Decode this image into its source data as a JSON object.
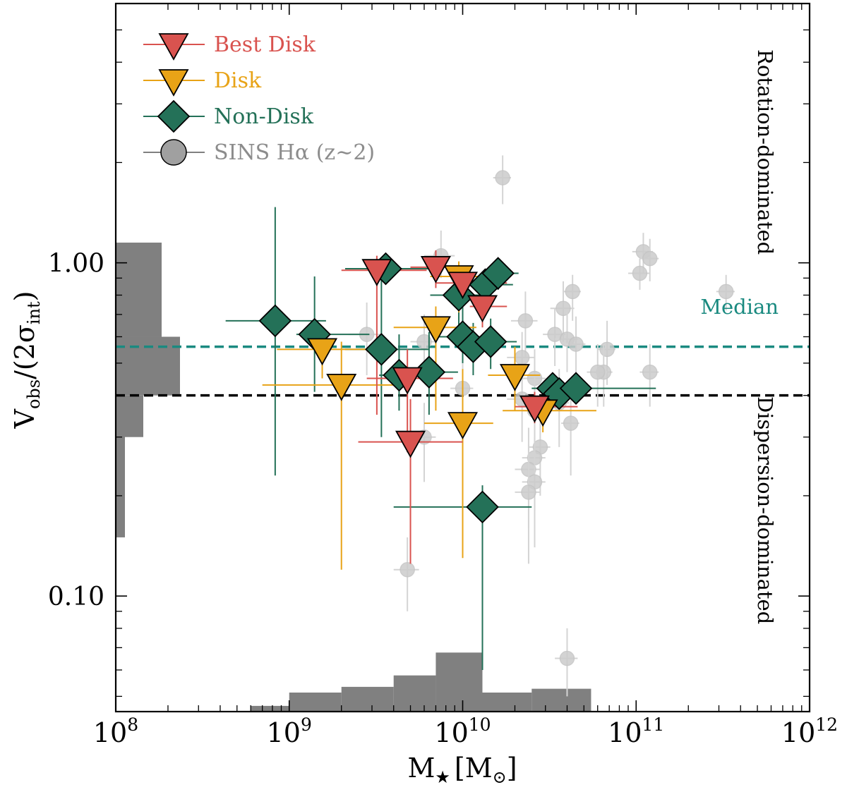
{
  "chart_data": {
    "type": "scatter",
    "title": "",
    "xlabel": {
      "base": "M",
      "sub": "★",
      "bracket": "[M",
      "bracket_sub": "⊙",
      "close": "]"
    },
    "ylabel": {
      "num": "V",
      "num_sub": "obs",
      "den": "/(2σ",
      "den_sub": "int",
      "close": ")"
    },
    "x_scale": "log",
    "y_scale": "log",
    "xlim": [
      100000000.0,
      1000000000000.0
    ],
    "ylim": [
      0.045,
      6.0
    ],
    "x_ticks": [
      {
        "base": "10",
        "exp": "8",
        "value": 100000000.0
      },
      {
        "base": "10",
        "exp": "9",
        "value": 1000000000.0
      },
      {
        "base": "10",
        "exp": "10",
        "value": 10000000000.0
      },
      {
        "base": "10",
        "exp": "11",
        "value": 100000000000.0
      },
      {
        "base": "10",
        "exp": "12",
        "value": 1000000000000.0
      }
    ],
    "y_ticks": [
      {
        "label": "0.10",
        "value": 0.1
      },
      {
        "label": "1.00",
        "value": 1.0
      }
    ],
    "annotations": {
      "rotation": "Rotation-dominated",
      "dispersion": "Dispersion-dominated",
      "median": "Median"
    },
    "legend": {
      "placement": "top-left",
      "entries": [
        {
          "label": "Best Disk",
          "marker": "triangle-down",
          "color": "#d9534f"
        },
        {
          "label": "Disk",
          "marker": "triangle-down",
          "color": "#e8a317"
        },
        {
          "label": "Non-Disk",
          "marker": "diamond",
          "color": "#247158"
        },
        {
          "label": "SINS Hα (z∼2)",
          "marker": "circle",
          "color": "#808080"
        }
      ]
    },
    "hlines": [
      {
        "name": "median",
        "y": 0.56,
        "color": "#1a8a80",
        "style": "dashed"
      },
      {
        "name": "threshold",
        "y": 0.4,
        "color": "#000000",
        "style": "dashed"
      }
    ],
    "hist_x": {
      "color": "#808080",
      "bins": [
        {
          "x0": 600000000.0,
          "x1": 1000000000.0,
          "h": 0.3
        },
        {
          "x0": 1000000000.0,
          "x1": 2000000000.0,
          "h": 1.0
        },
        {
          "x0": 2000000000.0,
          "x1": 4000000000.0,
          "h": 1.3
        },
        {
          "x0": 4000000000.0,
          "x1": 7000000000.0,
          "h": 1.9
        },
        {
          "x0": 7000000000.0,
          "x1": 13000000000.0,
          "h": 3.1
        },
        {
          "x0": 13000000000.0,
          "x1": 25000000000.0,
          "h": 1.0
        },
        {
          "x0": 25000000000.0,
          "x1": 55000000000.0,
          "h": 1.2
        }
      ]
    },
    "hist_y": {
      "color": "#808080",
      "bins": [
        {
          "y0": 0.15,
          "y1": 0.4,
          "w": 1
        },
        {
          "y0": 0.3,
          "y1": 0.4,
          "w": 3
        },
        {
          "y0": 0.4,
          "y1": 0.6,
          "w": 7
        },
        {
          "y0": 0.6,
          "y1": 1.15,
          "w": 5
        }
      ]
    },
    "series": [
      {
        "name": "SINS Hα (z∼2)",
        "marker": "circle",
        "color": "#cfcfcf",
        "points": [
          {
            "x": 17000000000.0,
            "y": 1.8,
            "xerr": [
              2000000000.0,
              2000000000.0
            ],
            "yerr": [
              0.3,
              0.3
            ]
          },
          {
            "x": 7500000000.0,
            "y": 1.05,
            "xerr": [
              1500000000.0,
              1500000000.0
            ],
            "yerr": [
              0.15,
              0.2
            ]
          },
          {
            "x": 110000000000.0,
            "y": 1.08,
            "xerr": [
              15000000000.0,
              15000000000.0
            ],
            "yerr": [
              0.15,
              0.15
            ]
          },
          {
            "x": 120000000000.0,
            "y": 1.03,
            "xerr": [
              15000000000.0,
              15000000000.0
            ],
            "yerr": [
              0.15,
              0.15
            ]
          },
          {
            "x": 105000000000.0,
            "y": 0.93,
            "xerr": [
              15000000000.0,
              15000000000.0
            ],
            "yerr": [
              0.1,
              0.1
            ]
          },
          {
            "x": 330000000000.0,
            "y": 0.82,
            "xerr": [
              40000000000.0,
              40000000000.0
            ],
            "yerr": [
              0.1,
              0.1
            ]
          },
          {
            "x": 43000000000.0,
            "y": 0.82,
            "xerr": [
              5000000000.0,
              5000000000.0
            ],
            "yerr": [
              0.15,
              0.1
            ]
          },
          {
            "x": 38000000000.0,
            "y": 0.73,
            "xerr": [
              6000000000.0,
              6000000000.0
            ],
            "yerr": [
              0.15,
              0.15
            ]
          },
          {
            "x": 23000000000.0,
            "y": 0.67,
            "xerr": [
              4000000000.0,
              4000000000.0
            ],
            "yerr": [
              0.15,
              0.15
            ]
          },
          {
            "x": 2800000000.0,
            "y": 0.61,
            "xerr": [
              600000000.0,
              600000000.0
            ],
            "yerr": [
              0.15,
              0.15
            ]
          },
          {
            "x": 34000000000.0,
            "y": 0.61,
            "xerr": [
              5000000000.0,
              5000000000.0
            ],
            "yerr": [
              0.12,
              0.12
            ]
          },
          {
            "x": 40000000000.0,
            "y": 0.59,
            "xerr": [
              6000000000.0,
              6000000000.0
            ],
            "yerr": [
              0.12,
              0.12
            ]
          },
          {
            "x": 6000000000.0,
            "y": 0.58,
            "xerr": [
              1000000000.0,
              1000000000.0
            ],
            "yerr": [
              0.12,
              0.12
            ]
          },
          {
            "x": 45000000000.0,
            "y": 0.57,
            "xerr": [
              6000000000.0,
              6000000000.0
            ],
            "yerr": [
              0.12,
              0.12
            ]
          },
          {
            "x": 68000000000.0,
            "y": 0.55,
            "xerr": [
              8000000000.0,
              8000000000.0
            ],
            "yerr": [
              0.12,
              0.12
            ]
          },
          {
            "x": 22000000000.0,
            "y": 0.52,
            "xerr": [
              4000000000.0,
              4000000000.0
            ],
            "yerr": [
              0.1,
              0.1
            ]
          },
          {
            "x": 65000000000.0,
            "y": 0.47,
            "xerr": [
              8000000000.0,
              8000000000.0
            ],
            "yerr": [
              0.1,
              0.1
            ]
          },
          {
            "x": 60000000000.0,
            "y": 0.47,
            "xerr": [
              8000000000.0,
              8000000000.0
            ],
            "yerr": [
              0.1,
              0.1
            ]
          },
          {
            "x": 120000000000.0,
            "y": 0.47,
            "xerr": [
              15000000000.0,
              15000000000.0
            ],
            "yerr": [
              0.1,
              0.1
            ]
          },
          {
            "x": 26000000000.0,
            "y": 0.45,
            "xerr": [
              4000000000.0,
              4000000000.0
            ],
            "yerr": [
              0.1,
              0.1
            ]
          },
          {
            "x": 10000000000.0,
            "y": 0.42,
            "xerr": [
              1500000000.0,
              1500000000.0
            ],
            "yerr": [
              0.1,
              0.1
            ]
          },
          {
            "x": 22000000000.0,
            "y": 0.39,
            "xerr": [
              4000000000.0,
              4000000000.0
            ],
            "yerr": [
              0.1,
              0.1
            ]
          },
          {
            "x": 36000000000.0,
            "y": 0.38,
            "xerr": [
              5000000000.0,
              5000000000.0
            ],
            "yerr": [
              0.1,
              0.1
            ]
          },
          {
            "x": 26000000000.0,
            "y": 0.36,
            "xerr": [
              4000000000.0,
              4000000000.0
            ],
            "yerr": [
              0.1,
              0.1
            ]
          },
          {
            "x": 42000000000.0,
            "y": 0.33,
            "xerr": [
              5000000000.0,
              5000000000.0
            ],
            "yerr": [
              0.1,
              0.1
            ]
          },
          {
            "x": 6000000000.0,
            "y": 0.3,
            "xerr": [
              1000000000.0,
              1000000000.0
            ],
            "yerr": [
              0.08,
              0.08
            ]
          },
          {
            "x": 28000000000.0,
            "y": 0.28,
            "xerr": [
              4000000000.0,
              4000000000.0
            ],
            "yerr": [
              0.08,
              0.08
            ]
          },
          {
            "x": 26000000000.0,
            "y": 0.26,
            "xerr": [
              4000000000.0,
              4000000000.0
            ],
            "yerr": [
              0.08,
              0.08
            ]
          },
          {
            "x": 24000000000.0,
            "y": 0.24,
            "xerr": [
              4000000000.0,
              4000000000.0
            ],
            "yerr": [
              0.08,
              0.08
            ]
          },
          {
            "x": 26000000000.0,
            "y": 0.22,
            "xerr": [
              4000000000.0,
              4000000000.0
            ],
            "yerr": [
              0.08,
              0.08
            ]
          },
          {
            "x": 24000000000.0,
            "y": 0.205,
            "xerr": [
              4000000000.0,
              4000000000.0
            ],
            "yerr": [
              0.08,
              0.08
            ]
          },
          {
            "x": 4800000000.0,
            "y": 0.12,
            "xerr": [
              800000000.0,
              800000000.0
            ],
            "yerr": [
              0.03,
              0.03
            ]
          },
          {
            "x": 40000000000.0,
            "y": 0.065,
            "xerr": [
              6000000000.0,
              6000000000.0
            ],
            "yerr": [
              0.015,
              0.015
            ]
          }
        ]
      },
      {
        "name": "Non-Disk",
        "marker": "diamond",
        "color": "#247158",
        "points": [
          {
            "x": 830000000.0,
            "y": 0.67,
            "xerr": [
              400000000.0,
              800000000.0
            ],
            "yerr": [
              0.44,
              0.8
            ]
          },
          {
            "x": 1400000000.0,
            "y": 0.61,
            "xerr": [
              300000000.0,
              1500000000.0
            ],
            "yerr": [
              0.2,
              0.3
            ]
          },
          {
            "x": 3400000000.0,
            "y": 0.55,
            "xerr": [
              1300000000.0,
              3000000000.0
            ],
            "yerr": [
              0.25,
              0.4
            ]
          },
          {
            "x": 3600000000.0,
            "y": 0.96,
            "xerr": [
              1500000000.0,
              4000000000.0
            ],
            "yerr": [
              0.05,
              0.1
            ]
          },
          {
            "x": 4300000000.0,
            "y": 0.46,
            "xerr": [
              1000000000.0,
              3000000000.0
            ],
            "yerr": [
              0.1,
              0.15
            ]
          },
          {
            "x": 6400000000.0,
            "y": 0.47,
            "xerr": [
              2000000000.0,
              3000000000.0
            ],
            "yerr": [
              0.12,
              0.15
            ]
          },
          {
            "x": 9500000000.0,
            "y": 0.8,
            "xerr": [
              3000000000.0,
              5000000000.0
            ],
            "yerr": [
              0.15,
              0.2
            ]
          },
          {
            "x": 10000000000.0,
            "y": 0.6,
            "xerr": [
              3000000000.0,
              5000000000.0
            ],
            "yerr": [
              0.1,
              0.15
            ]
          },
          {
            "x": 11500000000.0,
            "y": 0.56,
            "xerr": [
              2000000000.0,
              5000000000.0
            ],
            "yerr": [
              0.1,
              0.1
            ]
          },
          {
            "x": 14500000000.0,
            "y": 0.58,
            "xerr": [
              3000000000.0,
              6000000000.0
            ],
            "yerr": [
              0.1,
              0.1
            ]
          },
          {
            "x": 13500000000.0,
            "y": 0.86,
            "xerr": [
              3000000000.0,
              6000000000.0
            ],
            "yerr": [
              0.1,
              0.1
            ]
          },
          {
            "x": 16000000000.0,
            "y": 0.93,
            "xerr": [
              3000000000.0,
              5000000000.0
            ],
            "yerr": [
              0.1,
              0.1
            ]
          },
          {
            "x": 13000000000.0,
            "y": 0.185,
            "xerr": [
              9000000000.0,
              12000000000.0
            ],
            "yerr": [
              0.125,
              0.03
            ]
          },
          {
            "x": 33000000000.0,
            "y": 0.42,
            "xerr": [
              5000000000.0,
              8000000000.0
            ],
            "yerr": [
              0.04,
              0.04
            ]
          },
          {
            "x": 36000000000.0,
            "y": 0.405,
            "xerr": [
              5000000000.0,
              8000000000.0
            ],
            "yerr": [
              0.04,
              0.04
            ]
          },
          {
            "x": 45000000000.0,
            "y": 0.42,
            "xerr": [
              20000000000.0,
              85000000000.0
            ],
            "yerr": [
              0.03,
              0.03
            ]
          }
        ]
      },
      {
        "name": "Disk",
        "marker": "triangle-down",
        "color": "#e8a317",
        "points": [
          {
            "x": 1550000000.0,
            "y": 0.55,
            "xerr": [
              700000000.0,
              1500000000.0
            ],
            "yerr": [
              0.1,
              0.05
            ]
          },
          {
            "x": 2000000000.0,
            "y": 0.43,
            "xerr": [
              1300000000.0,
              2500000000.0
            ],
            "yerr": [
              0.31,
              0.15
            ]
          },
          {
            "x": 7000000000.0,
            "y": 0.64,
            "xerr": [
              3000000000.0,
              5000000000.0
            ],
            "yerr": [
              0.28,
              0.1
            ]
          },
          {
            "x": 9500000000.0,
            "y": 0.91,
            "xerr": [
              3000000000.0,
              7000000000.0
            ],
            "yerr": [
              0.2,
              0.1
            ]
          },
          {
            "x": 10000000000.0,
            "y": 0.33,
            "xerr": [
              4000000000.0,
              5000000000.0
            ],
            "yerr": [
              0.2,
              0.15
            ]
          },
          {
            "x": 20000000000.0,
            "y": 0.46,
            "xerr": [
              6000000000.0,
              8000000000.0
            ],
            "yerr": [
              0.1,
              0.1
            ]
          },
          {
            "x": 29000000000.0,
            "y": 0.36,
            "xerr": [
              12000000000.0,
              30000000000.0
            ],
            "yerr": [
              0.05,
              0.02
            ]
          }
        ]
      },
      {
        "name": "Best Disk",
        "marker": "triangle-down",
        "color": "#d9534f",
        "points": [
          {
            "x": 3200000000.0,
            "y": 0.95,
            "xerr": [
              1200000000.0,
              3000000000.0
            ],
            "yerr": [
              0.6,
              0.1
            ]
          },
          {
            "x": 4800000000.0,
            "y": 0.45,
            "xerr": [
              2000000000.0,
              4000000000.0
            ],
            "yerr": [
              0.18,
              0.1
            ]
          },
          {
            "x": 5000000000.0,
            "y": 0.29,
            "xerr": [
              2500000000.0,
              5000000000.0
            ],
            "yerr": [
              0.165,
              0.1
            ]
          },
          {
            "x": 7000000000.0,
            "y": 0.97,
            "xerr": [
              2000000000.0,
              3000000000.0
            ],
            "yerr": [
              0.13,
              0.12
            ]
          },
          {
            "x": 10000000000.0,
            "y": 0.87,
            "xerr": [
              3000000000.0,
              8000000000.0
            ],
            "yerr": [
              0.1,
              0.1
            ]
          },
          {
            "x": 13000000000.0,
            "y": 0.74,
            "xerr": [
              2000000000.0,
              5000000000.0
            ],
            "yerr": [
              0.1,
              0.1
            ]
          },
          {
            "x": 26000000000.0,
            "y": 0.37,
            "xerr": [
              6000000000.0,
              20000000000.0
            ],
            "yerr": [
              0.04,
              0.04
            ]
          }
        ]
      }
    ]
  }
}
